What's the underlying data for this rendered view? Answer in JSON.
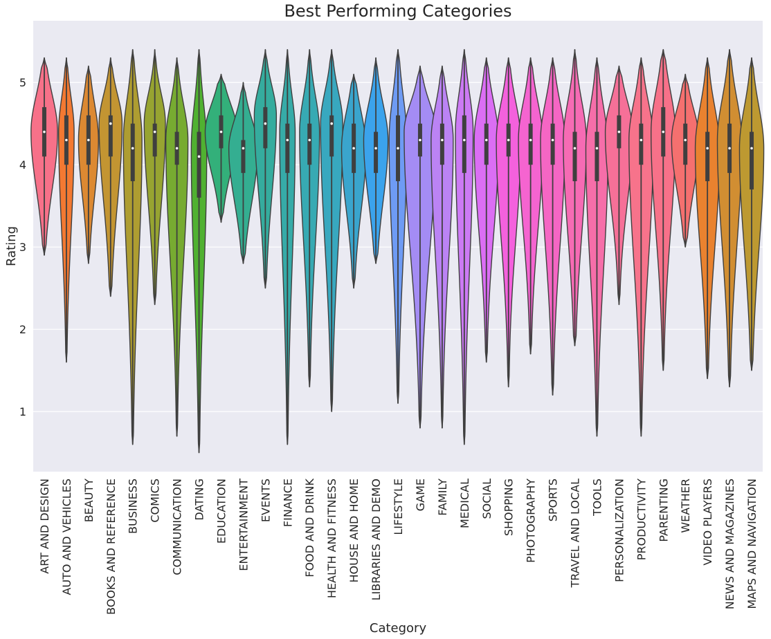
{
  "chart_data": {
    "type": "violin",
    "title": "Best Performing Categories",
    "xlabel": "Category",
    "ylabel": "Rating",
    "ylim": [
      0.27,
      5.75
    ],
    "yticks": [
      "1",
      "2",
      "3",
      "4",
      "5"
    ],
    "grid": true,
    "categories": [
      "ART AND DESIGN",
      "AUTO AND VEHICLES",
      "BEAUTY",
      "BOOKS AND REFERENCE",
      "BUSINESS",
      "COMICS",
      "COMMUNICATION",
      "DATING",
      "EDUCATION",
      "ENTERTAINMENT",
      "EVENTS",
      "FINANCE",
      "FOOD AND DRINK",
      "HEALTH AND FITNESS",
      "HOUSE AND HOME",
      "LIBRARIES AND DEMO",
      "LIFESTYLE",
      "GAME",
      "FAMILY",
      "MEDICAL",
      "SOCIAL",
      "SHOPPING",
      "PHOTOGRAPHY",
      "SPORTS",
      "TRAVEL AND LOCAL",
      "TOOLS",
      "PERSONALIZATION",
      "PRODUCTIVITY",
      "PARENTING",
      "WEATHER",
      "VIDEO PLAYERS",
      "NEWS AND MAGAZINES",
      "MAPS AND NAVIGATION"
    ],
    "colors": [
      "#f77189",
      "#f37932",
      "#dc8932",
      "#c39532",
      "#ae9d31",
      "#97a431",
      "#77ab31",
      "#50b131",
      "#33b07a",
      "#34ae91",
      "#35ac9e",
      "#36aba8",
      "#37aab3",
      "#38a8bf",
      "#3aa5cd",
      "#3ba3ec",
      "#6e9bf4",
      "#a48cf4",
      "#bb83f4",
      "#cc7af4",
      "#db6ef4",
      "#f461dd",
      "#f564d0",
      "#f566c4",
      "#f66bb4",
      "#f66ea9",
      "#f67098",
      "#f7738b",
      "#f77189",
      "#f5706f",
      "#e9822f",
      "#d18e32",
      "#bd9931"
    ],
    "violins": [
      {
        "min": 2.9,
        "max": 5.3,
        "q1": 4.1,
        "median": 4.4,
        "q3": 4.7,
        "mode": 4.4,
        "width": 0.6
      },
      {
        "min": 1.6,
        "max": 5.3,
        "q1": 4.0,
        "median": 4.3,
        "q3": 4.6,
        "mode": 4.4,
        "width": 0.35
      },
      {
        "min": 2.8,
        "max": 5.2,
        "q1": 4.0,
        "median": 4.3,
        "q3": 4.6,
        "mode": 4.3,
        "width": 0.45
      },
      {
        "min": 2.4,
        "max": 5.3,
        "q1": 4.1,
        "median": 4.5,
        "q3": 4.6,
        "mode": 4.5,
        "width": 0.52
      },
      {
        "min": 0.6,
        "max": 5.4,
        "q1": 3.8,
        "median": 4.2,
        "q3": 4.5,
        "mode": 4.3,
        "width": 0.42
      },
      {
        "min": 2.3,
        "max": 5.4,
        "q1": 4.1,
        "median": 4.4,
        "q3": 4.5,
        "mode": 4.5,
        "width": 0.48
      },
      {
        "min": 0.7,
        "max": 5.3,
        "q1": 4.0,
        "median": 4.2,
        "q3": 4.4,
        "mode": 4.3,
        "width": 0.5
      },
      {
        "min": 0.5,
        "max": 5.4,
        "q1": 3.6,
        "median": 4.1,
        "q3": 4.4,
        "mode": 4.2,
        "width": 0.35
      },
      {
        "min": 3.3,
        "max": 5.1,
        "q1": 4.2,
        "median": 4.4,
        "q3": 4.6,
        "mode": 4.4,
        "width": 0.72
      },
      {
        "min": 2.8,
        "max": 5.0,
        "q1": 3.9,
        "median": 4.2,
        "q3": 4.3,
        "mode": 4.2,
        "width": 0.65
      },
      {
        "min": 2.5,
        "max": 5.4,
        "q1": 4.2,
        "median": 4.5,
        "q3": 4.7,
        "mode": 4.6,
        "width": 0.5
      },
      {
        "min": 0.6,
        "max": 5.4,
        "q1": 3.9,
        "median": 4.3,
        "q3": 4.5,
        "mode": 4.4,
        "width": 0.35
      },
      {
        "min": 1.3,
        "max": 5.4,
        "q1": 4.0,
        "median": 4.3,
        "q3": 4.5,
        "mode": 4.4,
        "width": 0.45
      },
      {
        "min": 1.0,
        "max": 5.4,
        "q1": 4.1,
        "median": 4.5,
        "q3": 4.6,
        "mode": 4.5,
        "width": 0.5
      },
      {
        "min": 2.5,
        "max": 5.1,
        "q1": 3.9,
        "median": 4.2,
        "q3": 4.5,
        "mode": 4.2,
        "width": 0.55
      },
      {
        "min": 2.8,
        "max": 5.3,
        "q1": 3.9,
        "median": 4.2,
        "q3": 4.4,
        "mode": 4.3,
        "width": 0.55
      },
      {
        "min": 1.1,
        "max": 5.4,
        "q1": 3.8,
        "median": 4.2,
        "q3": 4.6,
        "mode": 4.3,
        "width": 0.4
      },
      {
        "min": 0.8,
        "max": 5.2,
        "q1": 4.1,
        "median": 4.3,
        "q3": 4.5,
        "mode": 4.4,
        "width": 0.72
      },
      {
        "min": 0.8,
        "max": 5.2,
        "q1": 4.0,
        "median": 4.3,
        "q3": 4.5,
        "mode": 4.3,
        "width": 0.5
      },
      {
        "min": 0.6,
        "max": 5.4,
        "q1": 3.9,
        "median": 4.3,
        "q3": 4.6,
        "mode": 4.4,
        "width": 0.4
      },
      {
        "min": 1.6,
        "max": 5.3,
        "q1": 4.0,
        "median": 4.3,
        "q3": 4.5,
        "mode": 4.3,
        "width": 0.55
      },
      {
        "min": 1.3,
        "max": 5.3,
        "q1": 4.1,
        "median": 4.3,
        "q3": 4.5,
        "mode": 4.3,
        "width": 0.55
      },
      {
        "min": 1.7,
        "max": 5.3,
        "q1": 4.0,
        "median": 4.3,
        "q3": 4.5,
        "mode": 4.3,
        "width": 0.55
      },
      {
        "min": 1.2,
        "max": 5.3,
        "q1": 4.0,
        "median": 4.3,
        "q3": 4.5,
        "mode": 4.3,
        "width": 0.55
      },
      {
        "min": 1.8,
        "max": 5.4,
        "q1": 3.8,
        "median": 4.2,
        "q3": 4.4,
        "mode": 4.3,
        "width": 0.52
      },
      {
        "min": 0.7,
        "max": 5.3,
        "q1": 3.8,
        "median": 4.2,
        "q3": 4.4,
        "mode": 4.2,
        "width": 0.5
      },
      {
        "min": 2.3,
        "max": 5.2,
        "q1": 4.2,
        "median": 4.4,
        "q3": 4.6,
        "mode": 4.4,
        "width": 0.62
      },
      {
        "min": 0.7,
        "max": 5.3,
        "q1": 4.0,
        "median": 4.3,
        "q3": 4.5,
        "mode": 4.3,
        "width": 0.55
      },
      {
        "min": 1.5,
        "max": 5.4,
        "q1": 4.1,
        "median": 4.4,
        "q3": 4.7,
        "mode": 4.4,
        "width": 0.55
      },
      {
        "min": 3.0,
        "max": 5.1,
        "q1": 4.0,
        "median": 4.3,
        "q3": 4.5,
        "mode": 4.3,
        "width": 0.62
      },
      {
        "min": 1.4,
        "max": 5.3,
        "q1": 3.8,
        "median": 4.2,
        "q3": 4.4,
        "mode": 4.2,
        "width": 0.55
      },
      {
        "min": 1.3,
        "max": 5.4,
        "q1": 3.9,
        "median": 4.2,
        "q3": 4.5,
        "mode": 4.3,
        "width": 0.55
      },
      {
        "min": 1.5,
        "max": 5.3,
        "q1": 3.7,
        "median": 4.2,
        "q3": 4.4,
        "mode": 4.2,
        "width": 0.55
      }
    ]
  }
}
